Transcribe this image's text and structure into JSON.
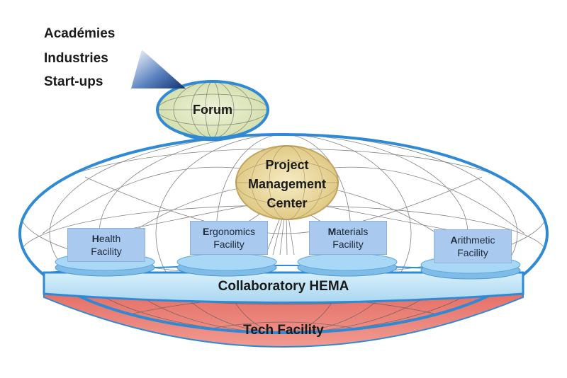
{
  "sources": [
    "Académies",
    "Industries",
    "Start-ups"
  ],
  "forum": "Forum",
  "pmc": {
    "line1": "Project",
    "line2": "Management",
    "line3": "Center"
  },
  "facilities": [
    {
      "initial": "H",
      "rest": "ealth",
      "line2": "Facility"
    },
    {
      "initial": "E",
      "rest": "rgonomics",
      "line2": "Facility"
    },
    {
      "initial": "M",
      "rest": "aterials",
      "line2": "Facility"
    },
    {
      "initial": "A",
      "rest": "rithmetic",
      "line2": "Facility"
    }
  ],
  "platform": "Collaboratory HEMA",
  "tech": "Tech Facility",
  "colors": {
    "ring": "#2f8ad6",
    "forum_fill": "#dfe9c2",
    "pmc_fill": "#e8d79c",
    "pmc_stroke": "#c2a560",
    "facility": "#a9c9ef",
    "pedestal": "#8ec6ee",
    "band": "#bde3f7",
    "tech": "#e7756c"
  }
}
